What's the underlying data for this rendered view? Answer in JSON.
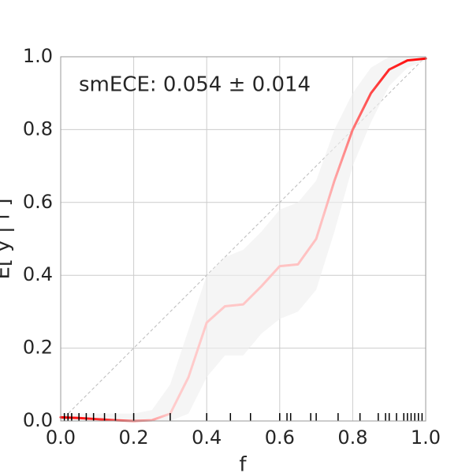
{
  "chart_data": {
    "type": "line",
    "annotation": "smECE: 0.054 ± 0.014",
    "xlabel": "f",
    "ylabel": "E[ y | f ]",
    "x": [
      0.0,
      0.05,
      0.1,
      0.15,
      0.2,
      0.25,
      0.3,
      0.35,
      0.4,
      0.45,
      0.5,
      0.55,
      0.6,
      0.65,
      0.7,
      0.75,
      0.8,
      0.85,
      0.9,
      0.95,
      1.0
    ],
    "series": [
      {
        "color": "#ff0000",
        "values": [
          0.01,
          0.008,
          0.005,
          0.002,
          0.0,
          0.002,
          0.02,
          0.12,
          0.27,
          0.315,
          0.32,
          0.37,
          0.425,
          0.43,
          0.5,
          0.66,
          0.8,
          0.9,
          0.965,
          0.99,
          0.995
        ],
        "lower": [
          0.0,
          0.0,
          0.0,
          0.0,
          0.0,
          0.0,
          0.0,
          0.02,
          0.12,
          0.18,
          0.18,
          0.24,
          0.28,
          0.3,
          0.36,
          0.52,
          0.7,
          0.82,
          0.92,
          0.97,
          0.99
        ],
        "upper": [
          0.02,
          0.02,
          0.02,
          0.02,
          0.02,
          0.03,
          0.1,
          0.25,
          0.4,
          0.45,
          0.47,
          0.52,
          0.58,
          0.6,
          0.66,
          0.8,
          0.9,
          0.97,
          1.0,
          1.0,
          1.0
        ]
      }
    ],
    "rug": [
      0.01,
      0.02,
      0.03,
      0.05,
      0.07,
      0.09,
      0.12,
      0.15,
      0.2,
      0.3,
      0.4,
      0.465,
      0.52,
      0.6,
      0.62,
      0.63,
      0.685,
      0.7,
      0.76,
      0.82,
      0.87,
      0.89,
      0.9,
      0.92,
      0.94,
      0.95,
      0.96,
      0.97,
      0.98,
      0.99
    ],
    "xlim": [
      0,
      1
    ],
    "ylim": [
      0,
      1
    ],
    "xticks": [
      {
        "value": 0,
        "label": "0.0"
      },
      0.2,
      0.4,
      0.6,
      0.8,
      {
        "value": 1,
        "label": "1.0"
      }
    ],
    "yticks": [
      {
        "value": 0,
        "label": "0.0"
      },
      0.2,
      0.4,
      0.6,
      0.8,
      {
        "value": 1,
        "label": "1.0"
      }
    ],
    "grid": true
  }
}
